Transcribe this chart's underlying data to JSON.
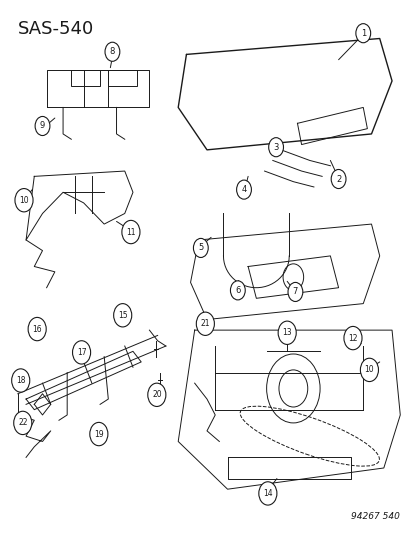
{
  "title": "SAS-540",
  "part_number": "94267 540",
  "bg_color": "#ffffff",
  "line_color": "#1a1a1a",
  "title_fontsize": 13,
  "fig_width": 4.14,
  "fig_height": 5.33,
  "dpi": 100
}
